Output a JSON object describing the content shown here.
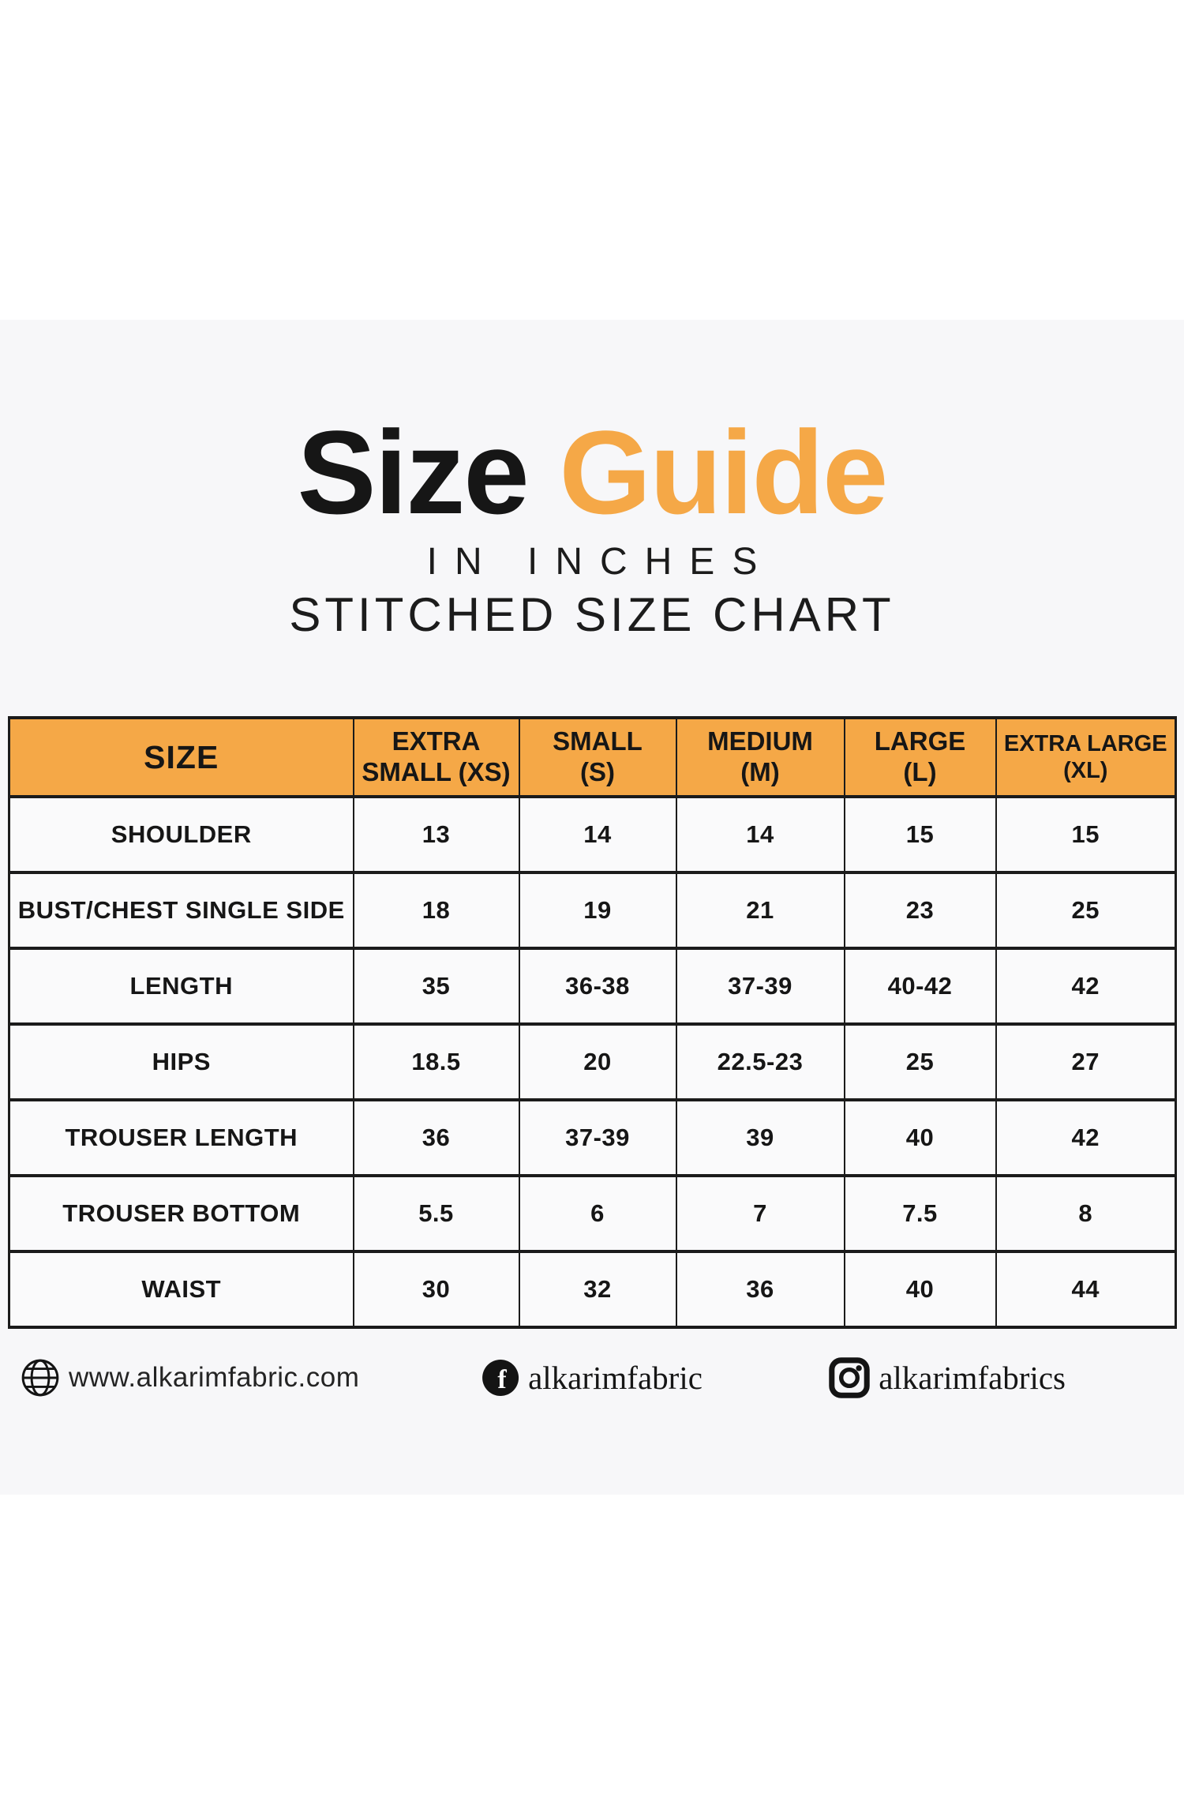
{
  "page": {
    "background": "#ffffff",
    "band_background": "#f7f7f9",
    "accent_orange": "#f5a847",
    "text_black": "#161616"
  },
  "title": {
    "word1": "Size",
    "word2": "Guide",
    "line2": "IN INCHES",
    "line3": "STITCHED SIZE CHART"
  },
  "chart_data": {
    "type": "table",
    "title": "Size Guide — Stitched Size Chart (in inches)",
    "header_bg": "#f5a847",
    "columns": [
      "SIZE",
      "EXTRA\nSMALL (XS)",
      "SMALL\n(S)",
      "MEDIUM\n(M)",
      "LARGE\n(L)",
      "EXTRA LARGE\n(XL)"
    ],
    "rows": [
      [
        "SHOULDER",
        "13",
        "14",
        "14",
        "15",
        "15"
      ],
      [
        "BUST/CHEST SINGLE SIDE",
        "18",
        "19",
        "21",
        "23",
        "25"
      ],
      [
        "LENGTH",
        "35",
        "36-38",
        "37-39",
        "40-42",
        "42"
      ],
      [
        "HIPS",
        "18.5",
        "20",
        "22.5-23",
        "25",
        "27"
      ],
      [
        "TROUSER LENGTH",
        "36",
        "37-39",
        "39",
        "40",
        "42"
      ],
      [
        "TROUSER BOTTOM",
        "5.5",
        "6",
        "7",
        "7.5",
        "8"
      ],
      [
        "WAIST",
        "30",
        "32",
        "36",
        "40",
        "44"
      ]
    ]
  },
  "footer": {
    "website": {
      "icon": "globe-icon",
      "text": "www.alkarimfabric.com"
    },
    "facebook": {
      "icon": "facebook-icon",
      "text": "alkarimfabric"
    },
    "instagram": {
      "icon": "instagram-icon",
      "text": "alkarimfabrics"
    }
  }
}
